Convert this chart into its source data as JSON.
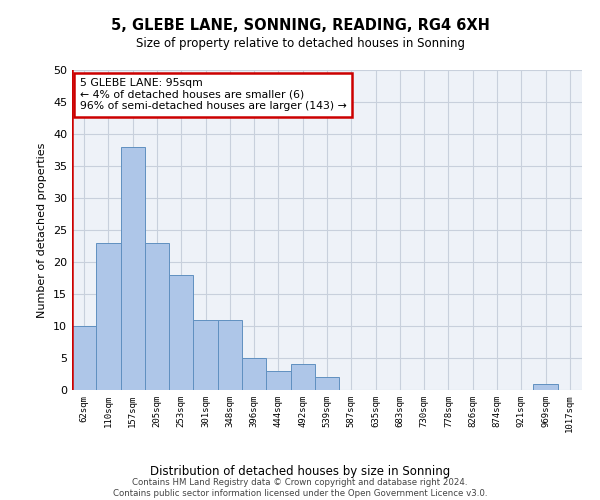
{
  "title": "5, GLEBE LANE, SONNING, READING, RG4 6XH",
  "subtitle": "Size of property relative to detached houses in Sonning",
  "xlabel": "Distribution of detached houses by size in Sonning",
  "ylabel": "Number of detached properties",
  "bar_labels": [
    "62sqm",
    "110sqm",
    "157sqm",
    "205sqm",
    "253sqm",
    "301sqm",
    "348sqm",
    "396sqm",
    "444sqm",
    "492sqm",
    "539sqm",
    "587sqm",
    "635sqm",
    "683sqm",
    "730sqm",
    "778sqm",
    "826sqm",
    "874sqm",
    "921sqm",
    "969sqm",
    "1017sqm"
  ],
  "bar_values": [
    10,
    23,
    38,
    23,
    18,
    11,
    11,
    5,
    3,
    4,
    2,
    0,
    0,
    0,
    0,
    0,
    0,
    0,
    0,
    1,
    0
  ],
  "bar_color": "#aec6e8",
  "bar_edge_color": "#6090c0",
  "ylim": [
    0,
    50
  ],
  "yticks": [
    0,
    5,
    10,
    15,
    20,
    25,
    30,
    35,
    40,
    45,
    50
  ],
  "annotation_box_text": "5 GLEBE LANE: 95sqm\n← 4% of detached houses are smaller (6)\n96% of semi-detached houses are larger (143) →",
  "marker_color": "#cc0000",
  "footer_line1": "Contains HM Land Registry data © Crown copyright and database right 2024.",
  "footer_line2": "Contains public sector information licensed under the Open Government Licence v3.0.",
  "bg_color": "#eef2f8",
  "grid_color": "#c8d0dc"
}
